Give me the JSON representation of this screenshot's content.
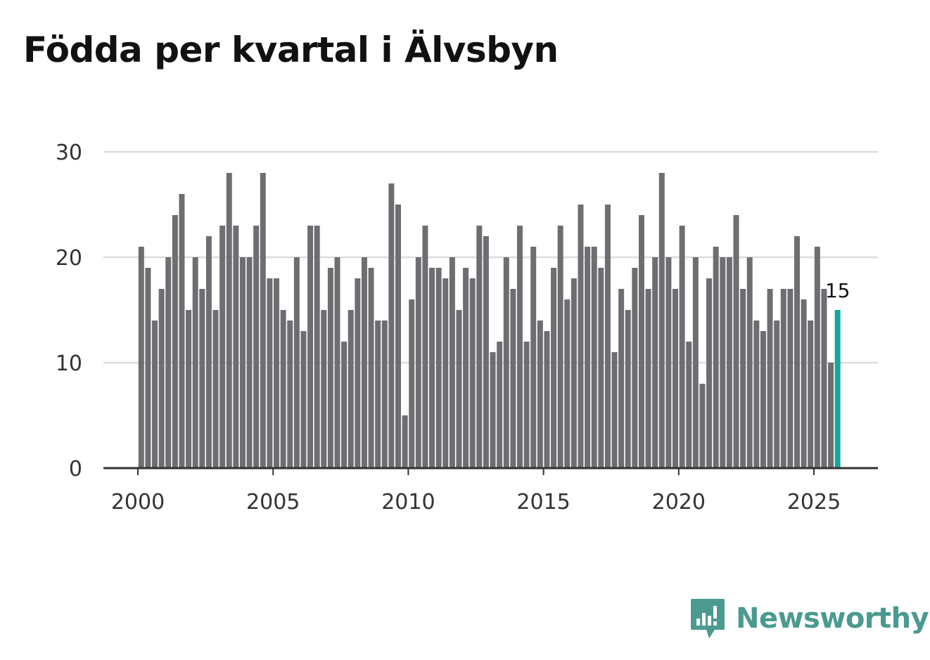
{
  "chart_data": {
    "type": "bar",
    "title": "Födda per kvartal i Älvsbyn",
    "xlabel": "",
    "ylabel": "",
    "ylim": [
      0,
      30
    ],
    "yticks": [
      "0",
      "10",
      "20",
      "30"
    ],
    "xtick_labels": [
      "2000",
      "2005",
      "2010",
      "2015",
      "2020",
      "2025"
    ],
    "x_start": 2000,
    "x_end": 2027.25,
    "first_quarter": "2000 Q1",
    "values": [
      21,
      19,
      14,
      17,
      20,
      24,
      26,
      15,
      20,
      17,
      22,
      15,
      23,
      28,
      23,
      20,
      20,
      23,
      28,
      18,
      18,
      15,
      14,
      20,
      13,
      23,
      23,
      15,
      19,
      20,
      12,
      15,
      18,
      20,
      19,
      14,
      14,
      27,
      25,
      5,
      16,
      20,
      23,
      19,
      19,
      18,
      20,
      15,
      19,
      18,
      23,
      22,
      11,
      12,
      20,
      17,
      23,
      12,
      21,
      14,
      13,
      19,
      23,
      16,
      18,
      25,
      21,
      21,
      19,
      25,
      11,
      17,
      15,
      19,
      24,
      17,
      20,
      28,
      20,
      17,
      23,
      12,
      20,
      8,
      18,
      21,
      20,
      20,
      24,
      17,
      20,
      14,
      13,
      17,
      14,
      17,
      17,
      22,
      16,
      14,
      21,
      17,
      10,
      15
    ],
    "highlight_value_label": "15",
    "colors": {
      "bar": "#6e6e72",
      "highlight": "#1aa59a",
      "grid": "#dddddd",
      "axis": "#333333"
    }
  },
  "brand": {
    "name": "Newsworthy",
    "icon": "newsworthy-logo-icon",
    "color": "#4a9a90"
  }
}
